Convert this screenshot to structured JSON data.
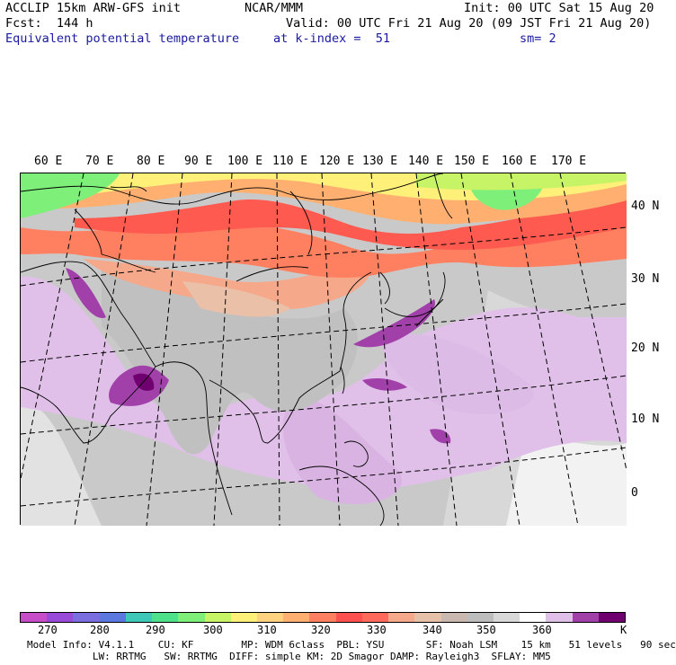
{
  "header": {
    "line1_left": "ACCLIP 15km ARW-GFS init",
    "line1_center": "NCAR/MMM",
    "line1_right": "Init: 00 UTC Sat 15 Aug 20",
    "line2_left": "Fcst:  144 h",
    "line2_right": "Valid: 00 UTC Fri 21 Aug 20 (09 JST Fri 21 Aug 20)",
    "line3_left": "Equivalent potential temperature",
    "line3_center": "at k-index =  51",
    "line3_right": "sm= 2"
  },
  "map": {
    "lon_labels": [
      "60 E",
      "70 E",
      "80 E",
      "90 E",
      "100 E",
      "110 E",
      "120 E",
      "130 E",
      "140 E",
      "150 E",
      "160 E",
      "170 E"
    ],
    "lat_labels": [
      "40 N",
      "30 N",
      "20 N",
      "10 N",
      "0"
    ]
  },
  "colorbar": {
    "colors": [
      "#c84dc8",
      "#9a4ad8",
      "#7a6ee0",
      "#5a78e0",
      "#3fc8b8",
      "#4ee08a",
      "#7ef07a",
      "#c6f466",
      "#fff07a",
      "#ffd280",
      "#ffb070",
      "#ff8060",
      "#ff5050",
      "#ff6a5a",
      "#f6a88a",
      "#e6c0a8",
      "#c8b8b0",
      "#bdbdbd",
      "#d8d8d8",
      "#ffffff",
      "#e0c0e8",
      "#a040a8",
      "#700070"
    ],
    "tick_labels": [
      "270",
      "280",
      "290",
      "300",
      "310",
      "320",
      "330",
      "340",
      "350",
      "360"
    ],
    "unit": "K"
  },
  "footer": {
    "line1": "Model Info: V4.1.1    CU: KF        MP: WDM 6class  PBL: YSU       SF: Noah LSM    15 km   51 levels   90 sec",
    "line2": "           LW: RRTMG   SW: RRTMG  DIFF: simple KM: 2D Smagor DAMP: Rayleigh3  SFLAY: MM5"
  }
}
